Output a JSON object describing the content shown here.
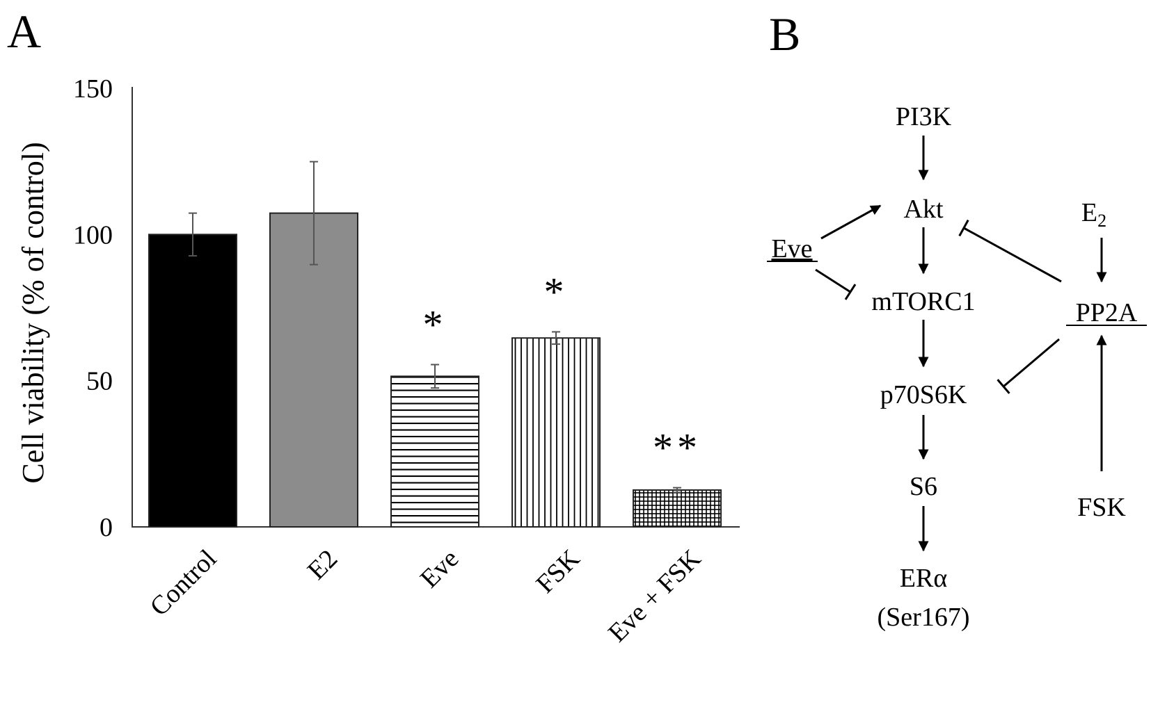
{
  "panels": {
    "a": "A",
    "b": "B"
  },
  "chart_data": {
    "type": "bar",
    "title": "",
    "xlabel": "",
    "ylabel": "Cell viability (% of control)",
    "ylim": [
      0,
      150
    ],
    "yticks": [
      "0",
      "50",
      "100",
      "150"
    ],
    "ytick_values": [
      0,
      50,
      100,
      150
    ],
    "grid": false,
    "categories": [
      "Control",
      "E2",
      "Eve",
      "FSK",
      "Eve + FSK"
    ],
    "values": [
      100,
      107.3,
      51.5,
      64.6,
      12.6
    ],
    "errors": [
      7.3,
      17.6,
      4.0,
      2.1,
      0.8
    ],
    "significance": [
      "",
      "",
      "*",
      "*",
      "**"
    ],
    "fills": [
      "solid-black",
      "solid-gray",
      "horizontal-lines",
      "vertical-lines",
      "grid-hatch"
    ],
    "colors": {
      "black": "#000000",
      "gray": "#8c8c8c"
    }
  },
  "diagram": {
    "nodes": {
      "pi3k": "PI3K",
      "akt": "Akt",
      "mtorc1": "mTORC1",
      "p70s6k": "p70S6K",
      "s6": "S6",
      "era": "ERα",
      "ser167": "(Ser167)",
      "eve": "Eve",
      "e2": "E",
      "e2_sub": "2",
      "pp2a": "PP2A",
      "fsk": "FSK"
    },
    "edges": [
      {
        "from": "PI3K",
        "to": "Akt",
        "type": "activation"
      },
      {
        "from": "Akt",
        "to": "mTORC1",
        "type": "activation"
      },
      {
        "from": "mTORC1",
        "to": "p70S6K",
        "type": "activation"
      },
      {
        "from": "p70S6K",
        "to": "S6",
        "type": "activation"
      },
      {
        "from": "S6",
        "to": "ERα",
        "type": "activation"
      },
      {
        "from": "Eve",
        "to": "Akt",
        "type": "activation"
      },
      {
        "from": "Eve",
        "to": "mTORC1",
        "type": "inhibition"
      },
      {
        "from": "PP2A",
        "to": "Akt",
        "type": "inhibition"
      },
      {
        "from": "PP2A",
        "to": "p70S6K",
        "type": "inhibition"
      },
      {
        "from": "E2",
        "to": "PP2A",
        "type": "activation"
      },
      {
        "from": "FSK",
        "to": "PP2A",
        "type": "activation"
      }
    ]
  }
}
